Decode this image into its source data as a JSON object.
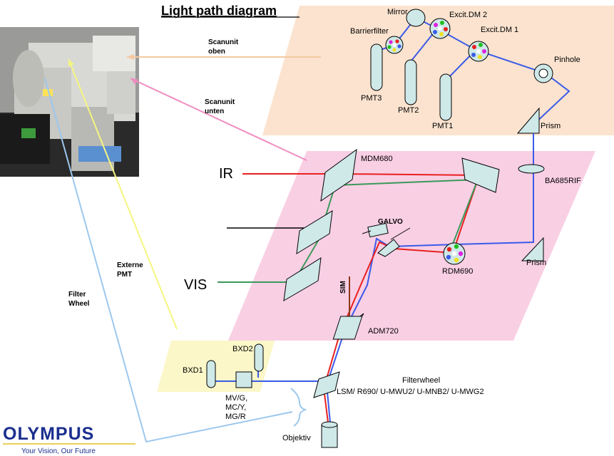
{
  "title": "Light path diagram",
  "photo_labels": {
    "scanunit_oben": [
      "Scanunit",
      "oben"
    ],
    "scanunit_unten": [
      "Scanunit",
      "unten"
    ],
    "externe_pmt": [
      "Externe",
      "PMT"
    ],
    "filter_wheel": [
      "Filter",
      "Wheel"
    ]
  },
  "upper_unit": {
    "mirror": "Mirror",
    "barrierfilter": "Barrierfilter",
    "excit_dm2": "Excit.DM 2",
    "excit_dm1": "Excit.DM 1",
    "pinhole": "Pinhole",
    "pmt3": "PMT3",
    "pmt2": "PMT2",
    "pmt1": "PMT1",
    "prism": "Prism"
  },
  "lower_unit": {
    "ir": "IR",
    "vis": "VIS",
    "mdm680": "MDM680",
    "ba685rif": "BA685RIF",
    "galvo": "GALVO",
    "rdm690": "RDM690",
    "prism": "Prism",
    "sim": "SIM",
    "adm720": "ADM720"
  },
  "bottom": {
    "bxd1": "BXD1",
    "bxd2": "BXD2",
    "cube_labels": [
      "MV/G,",
      "MC/Y,",
      "MG/R"
    ],
    "filterwheel": "Filterwheel",
    "filterwheel_list": "LSM/ R690/ U-MWU2/ U-MNB2/ U-MWG2",
    "objektiv": "Objektiv"
  },
  "logo": {
    "name": "OLYMPUS",
    "tagline": "Your Vision, Our Future"
  },
  "colors": {
    "upper_panel": "#fbe3cf",
    "lower_panel": "#f9cfe4",
    "bxd_panel": "#fbf7c8",
    "component_fill": "#cfe8e8",
    "laser_blue": "#3b5be8",
    "ir_red": "#e82020",
    "vis_green": "#3a9a5a",
    "sim_brown": "#8b3a1a",
    "logo_blue": "#1a2f8f"
  }
}
